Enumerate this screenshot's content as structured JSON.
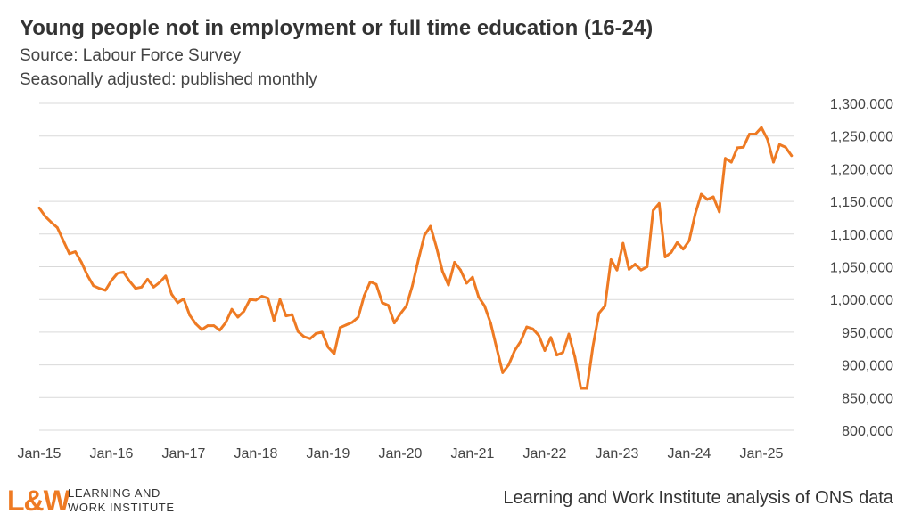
{
  "header": {
    "title": "Young people not in employment or full time education (16-24)",
    "source": "Source: Labour Force Survey",
    "note": "Seasonally adjusted: published monthly"
  },
  "footer": {
    "logo_mark": "L&W",
    "logo_line1": "LEARNING AND",
    "logo_line2": "WORK INSTITUTE",
    "credit": "Learning and Work Institute analysis of ONS data"
  },
  "colors": {
    "line": "#ee7a23",
    "grid": "#d9d9d9",
    "text": "#444444"
  },
  "chart_data": {
    "type": "line",
    "title": "Young people not in employment or full time education (16-24)",
    "x_tick_labels": [
      "Jan-15",
      "Jan-16",
      "Jan-17",
      "Jan-18",
      "Jan-19",
      "Jan-20",
      "Jan-21",
      "Jan-22",
      "Jan-23",
      "Jan-24",
      "Jan-25"
    ],
    "y_tick_labels": [
      "800,000",
      "850,000",
      "900,000",
      "950,000",
      "1,000,000",
      "1,050,000",
      "1,100,000",
      "1,150,000",
      "1,200,000",
      "1,250,000",
      "1,300,000"
    ],
    "ylim": [
      800000,
      1300000
    ],
    "grid": true,
    "legend": "none",
    "series": [
      {
        "start": "Jan-15",
        "frequency": "monthly",
        "values": [
          1140000,
          1127000,
          1118000,
          1110000,
          1090000,
          1070000,
          1073000,
          1057000,
          1037000,
          1021000,
          1017000,
          1014000,
          1029000,
          1040000,
          1042000,
          1028000,
          1017000,
          1019000,
          1031000,
          1019000,
          1026000,
          1036000,
          1008000,
          995000,
          1001000,
          976000,
          963000,
          954000,
          960000,
          960000,
          953000,
          965000,
          985000,
          973000,
          982000,
          1000000,
          999000,
          1005000,
          1002000,
          968000,
          1000000,
          975000,
          977000,
          951000,
          943000,
          940000,
          948000,
          950000,
          927000,
          917000,
          957000,
          961000,
          965000,
          973000,
          1006000,
          1027000,
          1023000,
          995000,
          991000,
          964000,
          978000,
          990000,
          1021000,
          1061000,
          1098000,
          1112000,
          1080000,
          1043000,
          1022000,
          1057000,
          1045000,
          1025000,
          1034000,
          1004000,
          990000,
          964000,
          926000,
          888000,
          900000,
          922000,
          936000,
          958000,
          955000,
          945000,
          922000,
          942000,
          915000,
          919000,
          947000,
          912000,
          864000,
          864000,
          928000,
          979000,
          990000,
          1061000,
          1045000,
          1086000,
          1046000,
          1054000,
          1045000,
          1050000,
          1136000,
          1147000,
          1065000,
          1072000,
          1087000,
          1077000,
          1090000,
          1131000,
          1161000,
          1153000,
          1157000,
          1134000,
          1216000,
          1210000,
          1232000,
          1233000,
          1253000,
          1253000,
          1263000,
          1245000,
          1210000,
          1237000,
          1233000,
          1220000
        ]
      }
    ]
  }
}
